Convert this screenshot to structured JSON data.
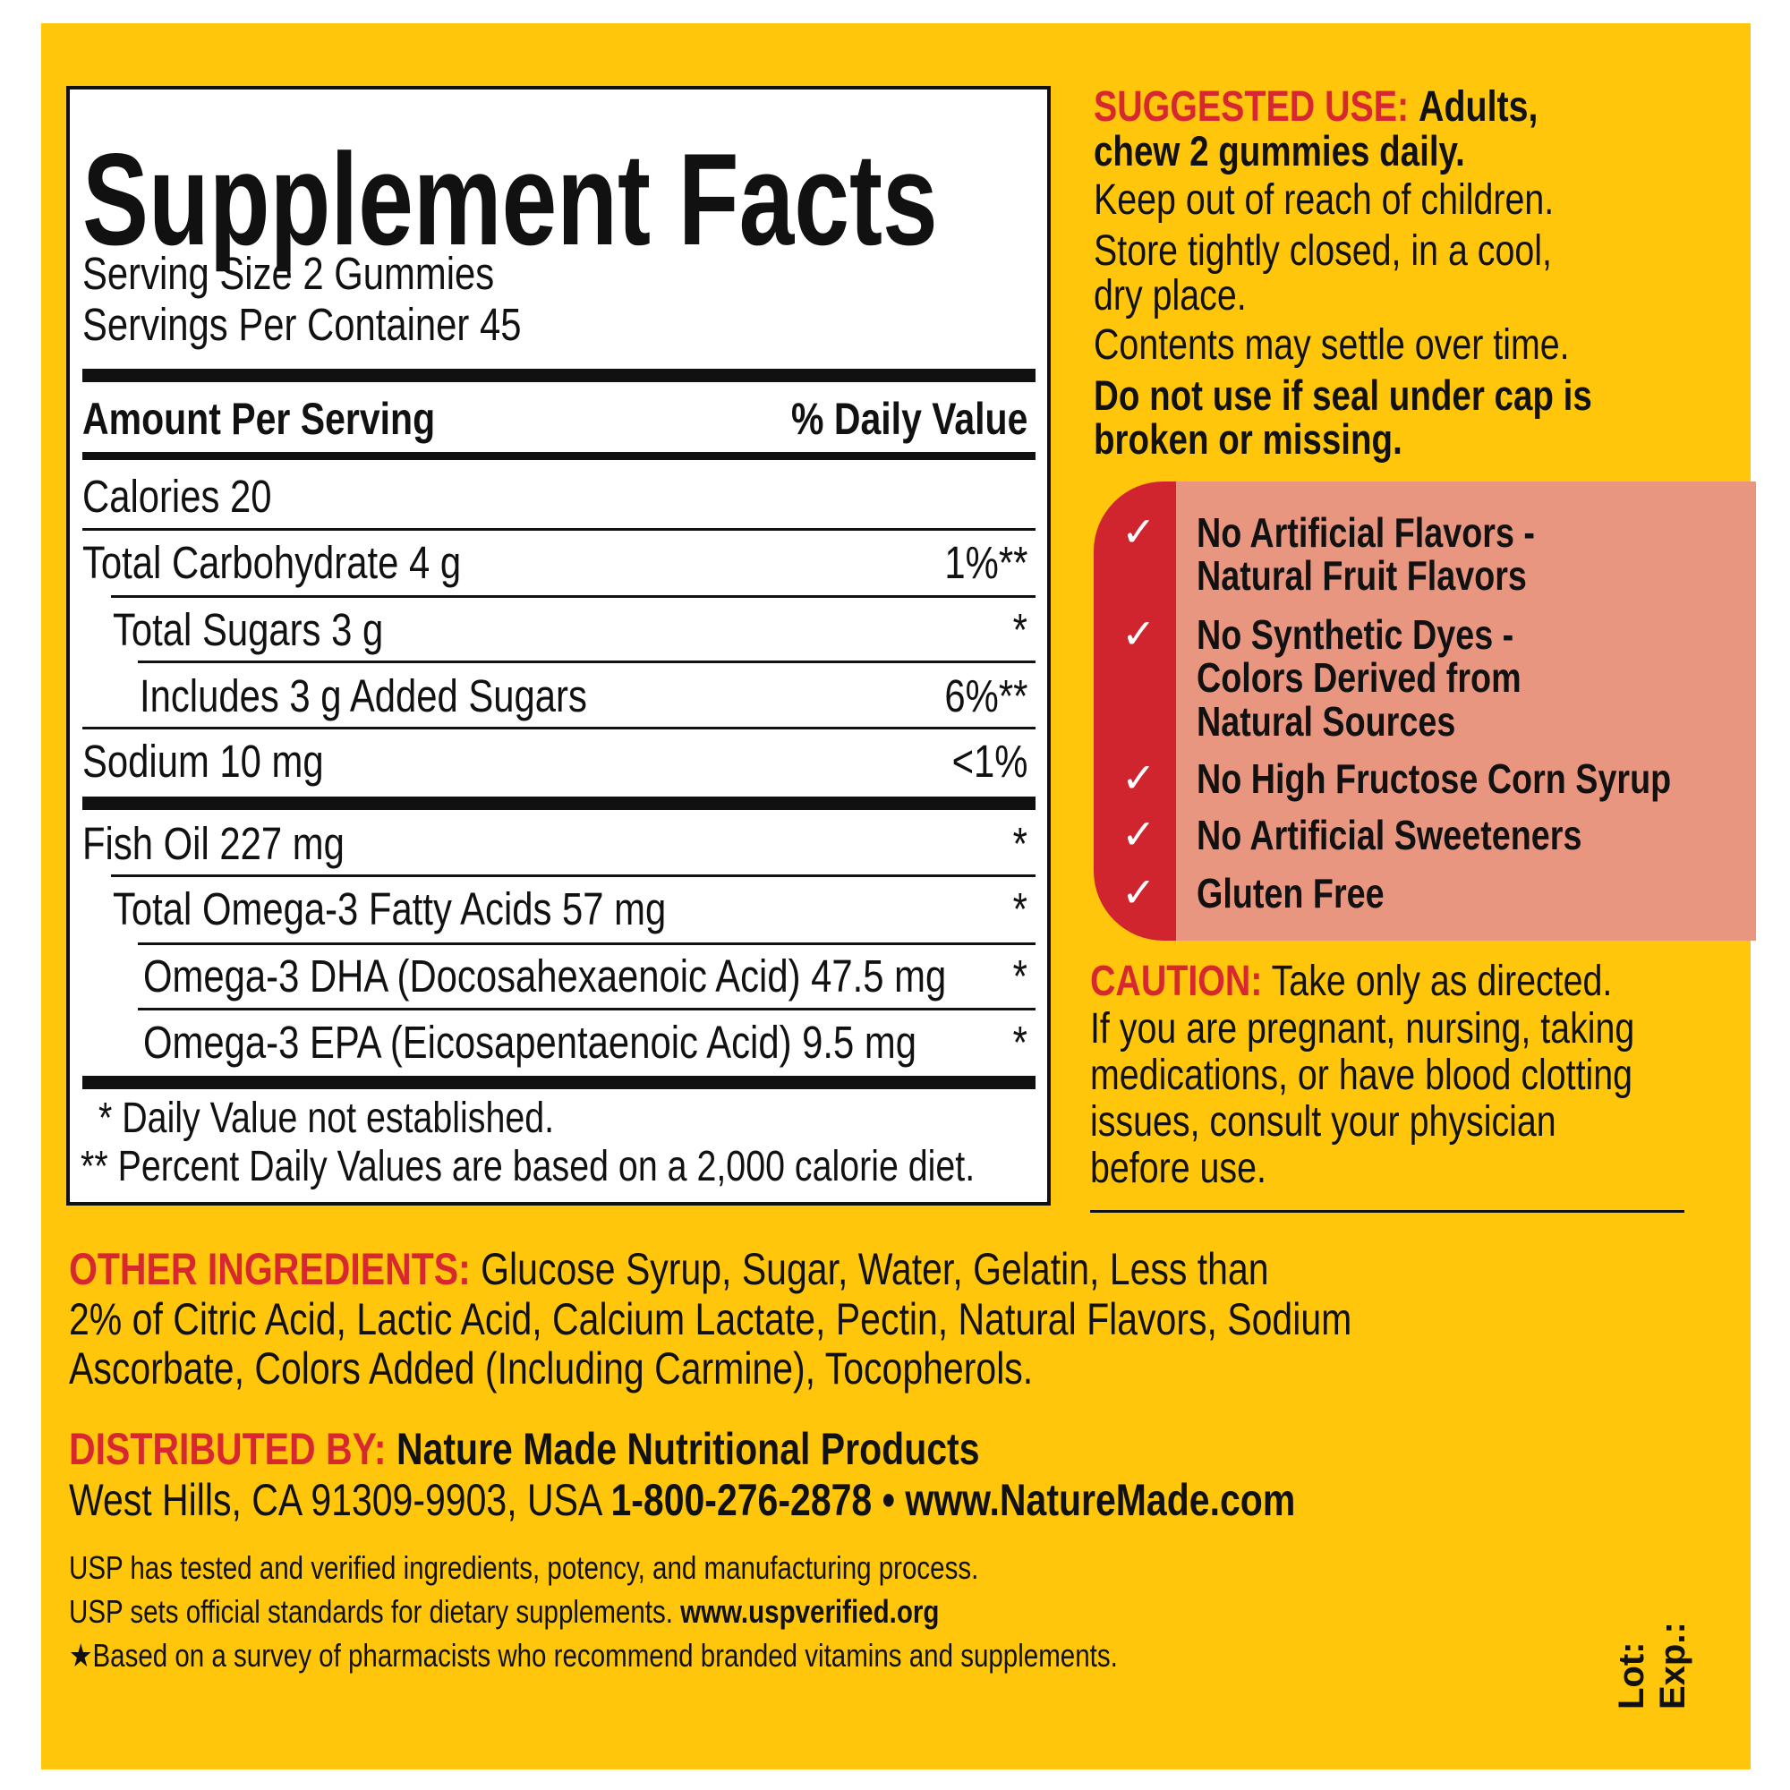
{
  "colors": {
    "background": "#FFC60B",
    "accent_red": "#D7282F",
    "claims_box": "#E89680",
    "claims_strip": "#D0252F"
  },
  "facts": {
    "title": "Supplement Facts",
    "serving_size": "Serving Size 2 Gummies",
    "servings_per_container": "Servings Per Container 45",
    "amount_header": "Amount Per Serving",
    "dv_header": "% Daily Value",
    "rows": [
      {
        "label": "Calories  20",
        "dv": ""
      },
      {
        "label": "Total Carbohydrate  4 g",
        "dv": "1%**"
      },
      {
        "label": "Total Sugars  3 g",
        "dv": "*"
      },
      {
        "label": "Includes  3 g Added Sugars",
        "dv": "6%**"
      },
      {
        "label": "Sodium  10 mg",
        "dv": "<1%"
      },
      {
        "label": "Fish Oil  227 mg",
        "dv": "*"
      },
      {
        "label": "Total Omega-3 Fatty Acids  57 mg",
        "dv": "*"
      },
      {
        "label": "Omega-3 DHA (Docosahexaenoic Acid)  47.5 mg",
        "dv": "*"
      },
      {
        "label": "Omega-3 EPA (Eicosapentaenoic Acid)  9.5 mg",
        "dv": "*"
      }
    ],
    "footnote1": "* Daily Value not established.",
    "footnote2": "** Percent Daily Values are based on a 2,000 calorie diet."
  },
  "suggested_use": {
    "label": "SUGGESTED USE:",
    "line1": "Adults,",
    "line2": "chew 2 gummies daily.",
    "line3": "Keep out of reach of children.",
    "line4": "Store tightly closed, in a cool,",
    "line5": "dry place.",
    "line6": "Contents may settle over time.",
    "line7": "Do not use if seal under cap is",
    "line8": "broken or missing."
  },
  "claims": [
    {
      "icon": "check-icon",
      "lines": [
        "No Artificial Flavors -",
        "Natural Fruit Flavors"
      ]
    },
    {
      "icon": "check-icon",
      "lines": [
        "No Synthetic Dyes -",
        "Colors Derived from",
        "Natural Sources"
      ]
    },
    {
      "icon": "check-icon",
      "lines": [
        "No High Fructose Corn Syrup"
      ]
    },
    {
      "icon": "check-icon",
      "lines": [
        "No Artificial Sweeteners"
      ]
    },
    {
      "icon": "check-icon",
      "lines": [
        "Gluten Free"
      ]
    }
  ],
  "caution": {
    "label": "CAUTION:",
    "lines": [
      "Take only as directed.",
      "If you are pregnant, nursing, taking",
      "medications, or have blood clotting",
      "issues, consult your physician",
      "before use."
    ]
  },
  "ingredients": {
    "label": "OTHER INGREDIENTS:",
    "lines": [
      "Glucose Syrup, Sugar, Water, Gelatin, Less than",
      "2% of Citric Acid, Lactic Acid, Calcium Lactate, Pectin, Natural Flavors, Sodium",
      "Ascorbate, Colors Added (Including Carmine), Tocopherols."
    ]
  },
  "distributor": {
    "label": "DISTRIBUTED BY:",
    "name": "Nature Made Nutritional Products",
    "address": "West Hills, CA 91309-9903, USA ",
    "phone_web": "1-800-276-2878 • www.NatureMade.com"
  },
  "usp": {
    "line1": "USP has tested and verified ingredients, potency, and manufacturing process.",
    "line2": "USP sets official standards for dietary supplements. ",
    "line2_url": "www.uspverified.org",
    "line3": "★Based on a survey of pharmacists who recommend branded vitamins and supplements."
  },
  "lot_label": "Lot:",
  "exp_label": "Exp.:"
}
